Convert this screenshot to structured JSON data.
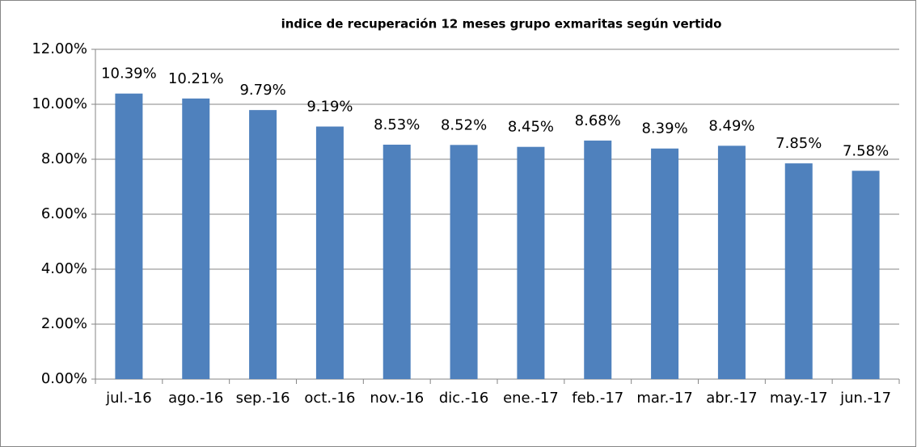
{
  "chart_data": {
    "type": "bar",
    "title": "indice de recuperación 12 meses grupo exmaritas según vertido",
    "categories": [
      "jul.-16",
      "ago.-16",
      "sep.-16",
      "oct.-16",
      "nov.-16",
      "dic.-16",
      "ene.-17",
      "feb.-17",
      "mar.-17",
      "abr.-17",
      "may.-17",
      "jun.-17"
    ],
    "values": [
      10.39,
      10.21,
      9.79,
      9.19,
      8.53,
      8.52,
      8.45,
      8.68,
      8.39,
      8.49,
      7.85,
      7.58
    ],
    "value_labels": [
      "10.39%",
      "10.21%",
      "9.79%",
      "9.19%",
      "8.53%",
      "8.52%",
      "8.45%",
      "8.68%",
      "8.39%",
      "8.49%",
      "7.85%",
      "7.58%"
    ],
    "color": "#4f81bd",
    "ylim": [
      0,
      12
    ],
    "yticks": [
      {
        "value": 0,
        "label": "0.00%"
      },
      {
        "value": 2,
        "label": "2.00%"
      },
      {
        "value": 4,
        "label": "4.00%"
      },
      {
        "value": 6,
        "label": "6.00%"
      },
      {
        "value": 8,
        "label": "8.00%"
      },
      {
        "value": 10,
        "label": "10.00%"
      },
      {
        "value": 12,
        "label": "12.00%"
      }
    ],
    "grid": true
  }
}
